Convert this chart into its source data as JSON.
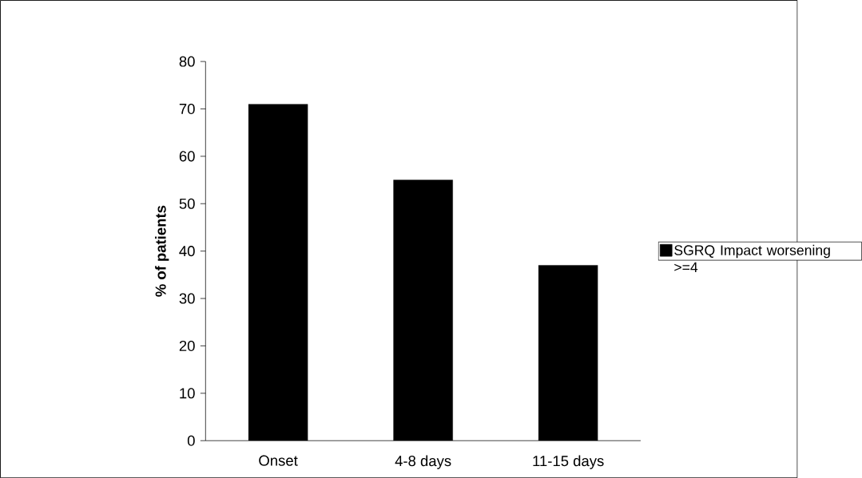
{
  "chart_data": {
    "type": "bar",
    "ylabel": "% of patients",
    "categories": [
      "Onset",
      "4-8 days",
      "11-15 days"
    ],
    "series": [
      {
        "name": "SGRQ Impact worsening >=4",
        "color": "#000000",
        "values": [
          71,
          55,
          37
        ]
      }
    ],
    "ylim": [
      0,
      80
    ],
    "yticks": [
      0,
      10,
      20,
      30,
      40,
      50,
      60,
      70,
      80
    ],
    "grid": false,
    "legend": "right"
  }
}
